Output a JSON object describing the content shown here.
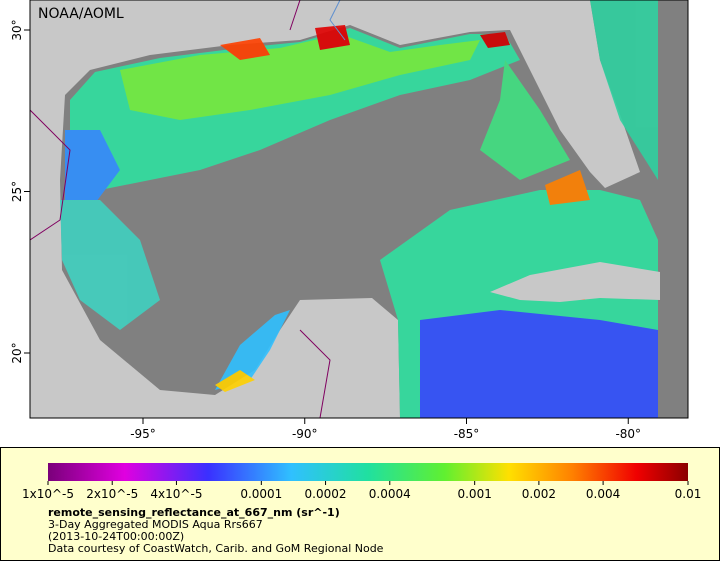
{
  "header": {
    "title": "NOAA/AOML"
  },
  "map": {
    "lon_ticks": [
      {
        "value": -95,
        "label": "-95°"
      },
      {
        "value": -90,
        "label": "-90°"
      },
      {
        "value": -85,
        "label": "-85°"
      },
      {
        "value": -80,
        "label": "-80°"
      }
    ],
    "lat_ticks": [
      {
        "value": 20,
        "label": "20°"
      },
      {
        "value": 25,
        "label": "25°"
      },
      {
        "value": 30,
        "label": "30°"
      }
    ]
  },
  "legend": {
    "colorbar_ticks": [
      {
        "value": 1e-05,
        "label": "1x10^-5"
      },
      {
        "value": 2e-05,
        "label": "2x10^-5"
      },
      {
        "value": 4e-05,
        "label": "4x10^-5"
      },
      {
        "value": 0.0001,
        "label": "0.0001"
      },
      {
        "value": 0.0002,
        "label": "0.0002"
      },
      {
        "value": 0.0004,
        "label": "0.0004"
      },
      {
        "value": 0.001,
        "label": "0.001"
      },
      {
        "value": 0.002,
        "label": "0.002"
      },
      {
        "value": 0.004,
        "label": "0.004"
      },
      {
        "value": 0.01,
        "label": "0.01"
      }
    ],
    "variable": "remote_sensing_reflectance_at_667_nm (sr^-1)",
    "description": "3-Day Aggregated MODIS Aqua Rrs667",
    "time": "(2013-10-24T00:00:00Z)",
    "credit": "Data courtesy of CoastWatch, Carib. and GoM Regional Node"
  }
}
